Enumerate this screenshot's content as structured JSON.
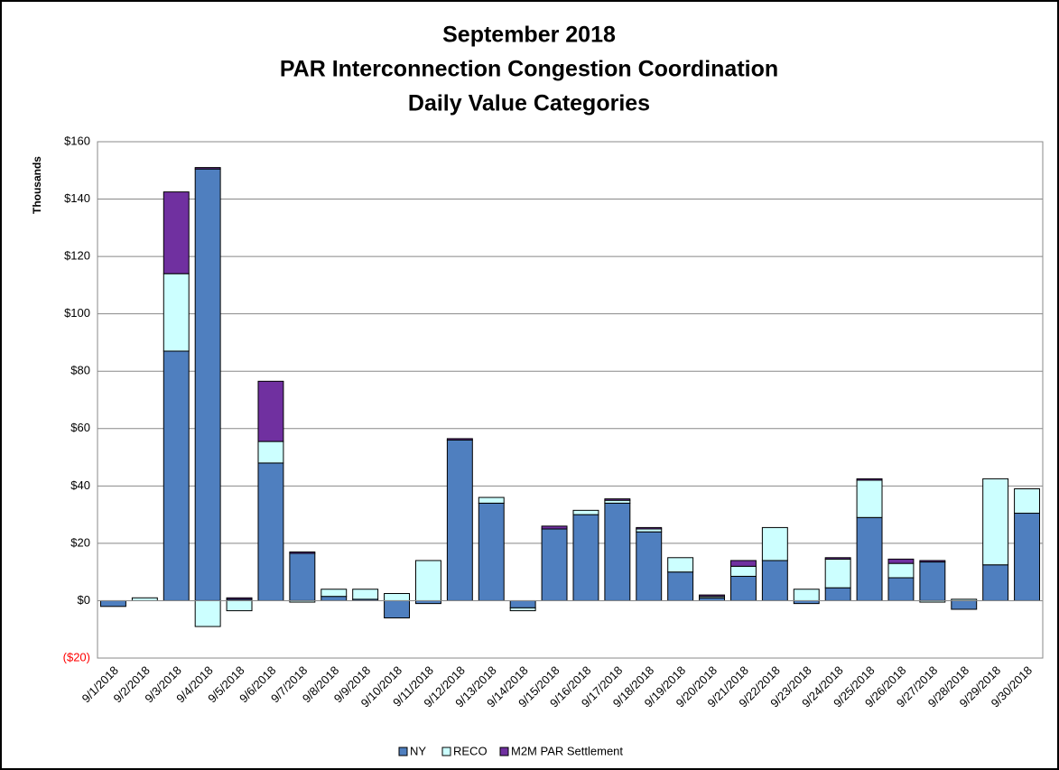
{
  "chart_data": {
    "type": "stacked_bar",
    "title": [
      "September 2018",
      "PAR Interconnection Congestion Coordination",
      "Daily Value Categories"
    ],
    "y_label": "Thousands",
    "categories": [
      "9/1/2018",
      "9/2/2018",
      "9/3/2018",
      "9/4/2018",
      "9/5/2018",
      "9/6/2018",
      "9/7/2018",
      "9/8/2018",
      "9/9/2018",
      "9/10/2018",
      "9/11/2018",
      "9/12/2018",
      "9/13/2018",
      "9/14/2018",
      "9/15/2018",
      "9/16/2018",
      "9/17/2018",
      "9/18/2018",
      "9/19/2018",
      "9/20/2018",
      "9/21/2018",
      "9/22/2018",
      "9/23/2018",
      "9/24/2018",
      "9/25/2018",
      "9/26/2018",
      "9/27/2018",
      "9/28/2018",
      "9/29/2018",
      "9/30/2018"
    ],
    "series": [
      {
        "name": "NY",
        "color": "#4f7fbf",
        "values": [
          -2,
          0,
          87,
          150.5,
          0.5,
          48,
          16.5,
          1.5,
          0.5,
          -6,
          -1,
          56,
          34,
          -2.5,
          25,
          30,
          34,
          24,
          10,
          1,
          8.5,
          14,
          -1,
          4.5,
          29,
          8,
          13.5,
          -3,
          12.5,
          30.5
        ]
      },
      {
        "name": "RECO",
        "color": "#ccffff",
        "values": [
          0,
          1,
          27,
          -9,
          -3.5,
          7.5,
          -0.5,
          2.5,
          3.5,
          2.5,
          14,
          0,
          2,
          -1,
          0,
          1.5,
          1,
          1,
          5,
          0.5,
          3.5,
          11.5,
          4,
          10,
          13,
          5,
          -0.5,
          0.5,
          30,
          8.5
        ]
      },
      {
        "name": "M2M PAR Settlement",
        "color": "#7030a0",
        "values": [
          0,
          0,
          28.5,
          0.5,
          0.5,
          21,
          0.5,
          0,
          0,
          0,
          0,
          0.5,
          0,
          0,
          1,
          0,
          0.5,
          0.5,
          0,
          0.5,
          2,
          0,
          0,
          0.5,
          0.5,
          1.5,
          0.5,
          0,
          0,
          0
        ]
      }
    ],
    "ylim": [
      -20,
      160
    ],
    "yticks": [
      {
        "value": -20,
        "label": "($20)"
      },
      {
        "value": 0,
        "label": "$0"
      },
      {
        "value": 20,
        "label": "$20"
      },
      {
        "value": 40,
        "label": "$40"
      },
      {
        "value": 60,
        "label": "$60"
      },
      {
        "value": 80,
        "label": "$80"
      },
      {
        "value": 100,
        "label": "$100"
      },
      {
        "value": 120,
        "label": "$120"
      },
      {
        "value": 140,
        "label": "$140"
      },
      {
        "value": 160,
        "label": "$160"
      }
    ],
    "negative_tick_color": "#ff0000",
    "grid": true,
    "legend": "bottom"
  }
}
